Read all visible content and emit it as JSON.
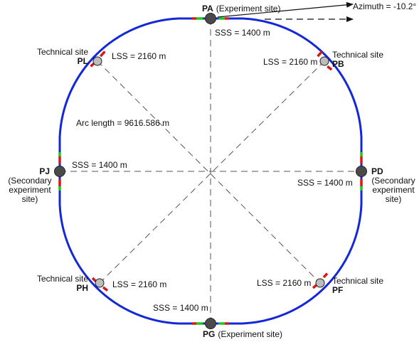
{
  "colors": {
    "ring": "#1428d8",
    "section_red": "#d81818",
    "section_green": "#1cc81c",
    "guide": "#555555",
    "point_large": "#4a4a4a",
    "point_small": "#bdbdbd"
  },
  "points": {
    "pa": {
      "name": "PA",
      "desc": "(Experiment site)"
    },
    "pg": {
      "name": "PG",
      "desc": "(Experiment site)"
    },
    "pl": {
      "name": "PL",
      "note": "Technical site"
    },
    "pb": {
      "name": "PB",
      "note": "Technical site"
    },
    "ph": {
      "name": "PH",
      "note": "Technical site"
    },
    "pf": {
      "name": "PF",
      "note": "Technical site"
    },
    "pj": {
      "name": "PJ",
      "desc_lines": [
        "(Secondary",
        "experiment",
        "site)"
      ]
    },
    "pd": {
      "name": "PD",
      "desc_lines": [
        "(Secondary",
        "experiment",
        "site)"
      ]
    }
  },
  "labels": {
    "sss": "SSS = 1400 m",
    "lss": "LSS = 2160 m",
    "arc": "Arc length = 9616.586 m",
    "azimuth": "Azimuth = -10.2°"
  }
}
